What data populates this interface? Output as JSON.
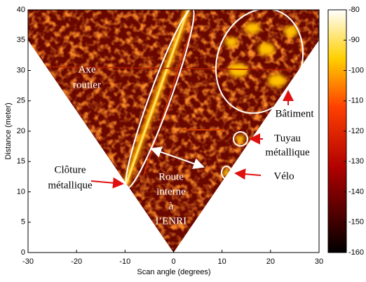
{
  "chart_data": {
    "type": "heatmap",
    "xlabel": "Scan angle (degrees)",
    "ylabel": "Distance (meter)",
    "xlim": [
      -30,
      30
    ],
    "ylim": [
      0,
      40
    ],
    "xticks": [
      -30,
      -20,
      -10,
      0,
      10,
      20,
      30
    ],
    "yticks": [
      0,
      5,
      10,
      15,
      20,
      25,
      30,
      35,
      40
    ],
    "colorbar": {
      "lim": [
        -160,
        -80
      ],
      "ticks": [
        -80,
        -90,
        -100,
        -110,
        -120,
        -130,
        -140,
        -150,
        -160
      ]
    },
    "annotations": [
      {
        "lines": [
          "Axe",
          "routier"
        ],
        "color": "#ffffff"
      },
      {
        "lines": [
          "Clôture",
          "métallique"
        ],
        "color": "#000000"
      },
      {
        "lines": [
          "Route",
          "interne",
          "à",
          "l’ENRI"
        ],
        "color": "#ffffff"
      },
      {
        "lines": [
          "Bâtiment"
        ],
        "color": "#000000"
      },
      {
        "lines": [
          "Tuyau",
          "métallique"
        ],
        "color": "#000000"
      },
      {
        "lines": [
          "Vélo"
        ],
        "color": "#000000"
      }
    ]
  }
}
